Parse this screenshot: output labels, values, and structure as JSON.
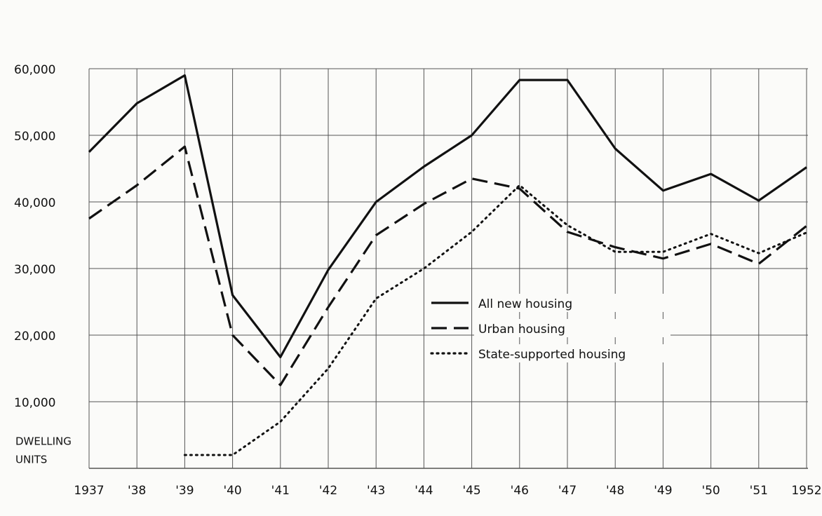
{
  "chart_data": {
    "type": "line",
    "ylabel": [
      "DWELLING",
      "UNITS"
    ],
    "categories": [
      "1937",
      "'38",
      "'39",
      "'40",
      "'41",
      "'42",
      "'43",
      "'44",
      "'45",
      "'46",
      "'47",
      "'48",
      "'49",
      "'50",
      "'51",
      "1952"
    ],
    "series": [
      {
        "name": "All new housing",
        "color": "#111111",
        "style": "solid",
        "values": [
          47500,
          54800,
          59000,
          26000,
          16700,
          29800,
          40000,
          45300,
          50000,
          58300,
          58300,
          48000,
          41700,
          44200,
          40200,
          45200
        ]
      },
      {
        "name": "Urban housing",
        "color": "#111111",
        "style": "dashed",
        "values": [
          37500,
          42500,
          48300,
          20000,
          12500,
          24200,
          35000,
          39700,
          43500,
          42000,
          35500,
          33200,
          31500,
          33700,
          30700,
          36400
        ]
      },
      {
        "name": "State-supported housing",
        "color": "#111111",
        "style": "dotted",
        "values": [
          null,
          null,
          2000,
          2000,
          7000,
          15000,
          25500,
          30000,
          35500,
          42500,
          36500,
          32500,
          32500,
          35200,
          32300,
          35400
        ]
      }
    ],
    "ylim": [
      0,
      60000
    ],
    "yticks": [
      {
        "value": 10000,
        "label": "10,000"
      },
      {
        "value": 20000,
        "label": "20,000"
      },
      {
        "value": 30000,
        "label": "30,000"
      },
      {
        "value": 40000,
        "label": "40,000"
      },
      {
        "value": 50000,
        "label": "50,000"
      },
      {
        "value": 60000,
        "label": "60,000"
      }
    ],
    "grid": true
  }
}
